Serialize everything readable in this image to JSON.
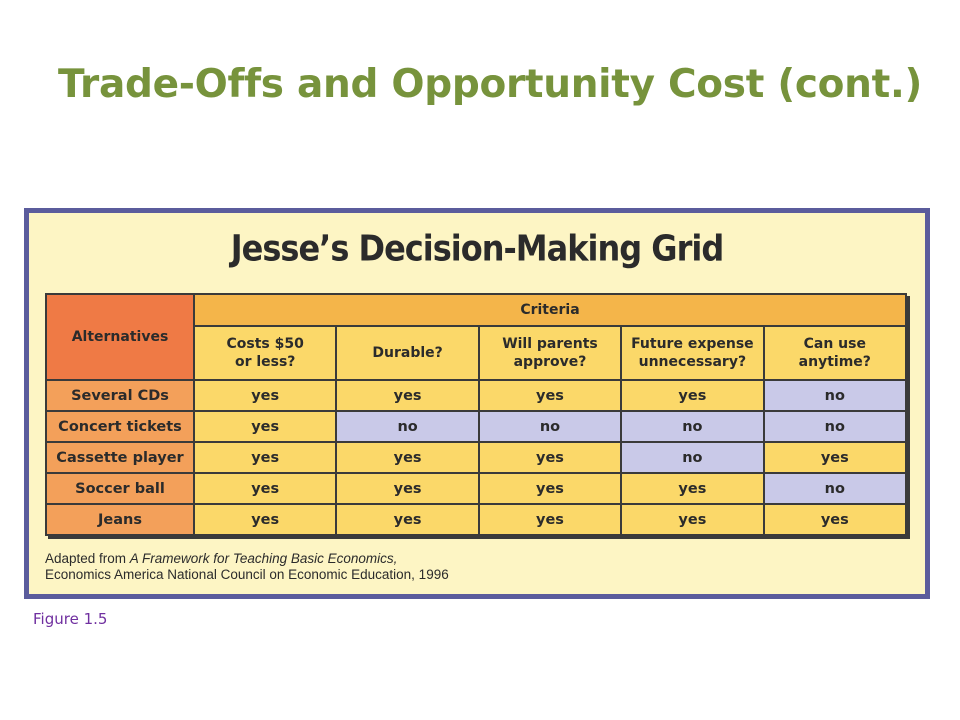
{
  "slide": {
    "title": "Trade-Offs and Opportunity Cost (cont.)",
    "figure_caption": "Figure 1.5"
  },
  "grid": {
    "title": "Jesse’s Decision-Making Grid",
    "alternatives_header": "Alternatives",
    "criteria_header": "Criteria",
    "criteria": [
      {
        "line1": "Costs $50",
        "line2": "or less?"
      },
      {
        "line1": "Durable?",
        "line2": ""
      },
      {
        "line1": "Will parents",
        "line2": "approve?"
      },
      {
        "line1": "Future expense",
        "line2": "unnecessary?"
      },
      {
        "line1": "Can use",
        "line2": "anytime?"
      }
    ],
    "rows": [
      {
        "label": "Several CDs",
        "values": [
          "yes",
          "yes",
          "yes",
          "yes",
          "no"
        ]
      },
      {
        "label": "Concert tickets",
        "values": [
          "yes",
          "no",
          "no",
          "no",
          "no"
        ]
      },
      {
        "label": "Cassette player",
        "values": [
          "yes",
          "yes",
          "yes",
          "no",
          "yes"
        ]
      },
      {
        "label": "Soccer ball",
        "values": [
          "yes",
          "yes",
          "yes",
          "yes",
          "no"
        ]
      },
      {
        "label": "Jeans",
        "values": [
          "yes",
          "yes",
          "yes",
          "yes",
          "yes"
        ]
      }
    ],
    "source": {
      "prefix": "Adapted from ",
      "work_title": "A Framework for Teaching Basic Economics,",
      "line2": "Economics America National Council on Economic Education, 1996"
    }
  }
}
